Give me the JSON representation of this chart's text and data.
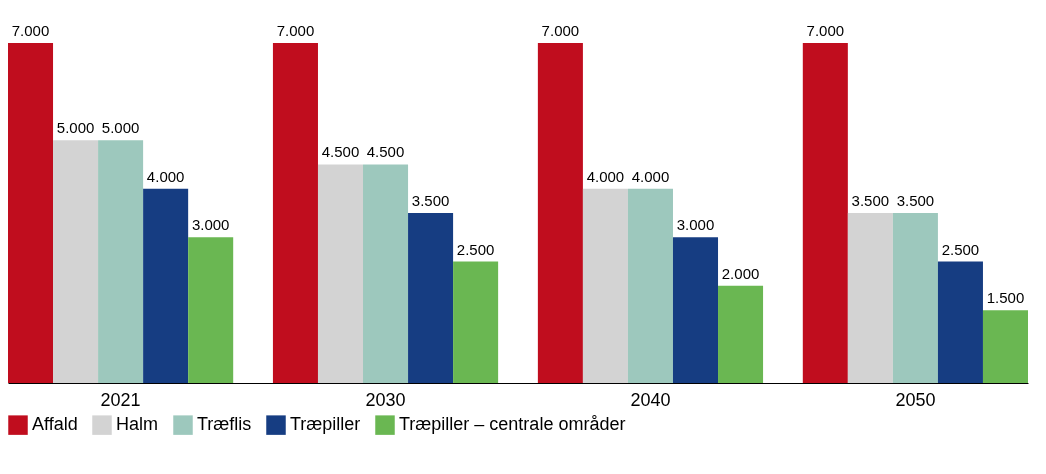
{
  "chart_data": {
    "type": "bar",
    "categories": [
      "2021",
      "2030",
      "2040",
      "2050"
    ],
    "series": [
      {
        "name": "Affald",
        "color": "#c00d1e",
        "values": [
          7000,
          7000,
          7000,
          7000
        ],
        "value_labels": [
          "7.000",
          "7.000",
          "7.000",
          "7.000"
        ]
      },
      {
        "name": "Halm",
        "color": "#d3d3d3",
        "values": [
          5000,
          4500,
          4000,
          3500
        ],
        "value_labels": [
          "5.000",
          "4.500",
          "4.000",
          "3.500"
        ]
      },
      {
        "name": "Træflis",
        "color": "#9dc8bd",
        "values": [
          5000,
          4500,
          4000,
          3500
        ],
        "value_labels": [
          "5.000",
          "4.500",
          "4.000",
          "3.500"
        ]
      },
      {
        "name": "Træpiller",
        "color": "#163d82",
        "values": [
          4000,
          3500,
          3000,
          2500
        ],
        "value_labels": [
          "4.000",
          "3.500",
          "3.000",
          "2.500"
        ]
      },
      {
        "name": "Træpiller – centrale områder",
        "color": "#6ab752",
        "values": [
          3000,
          2500,
          2000,
          1500
        ],
        "value_labels": [
          "3.000",
          "2.500",
          "2.000",
          "1.500"
        ]
      }
    ],
    "legend": "bottom",
    "tick_labels": "x",
    "grid": false
  }
}
